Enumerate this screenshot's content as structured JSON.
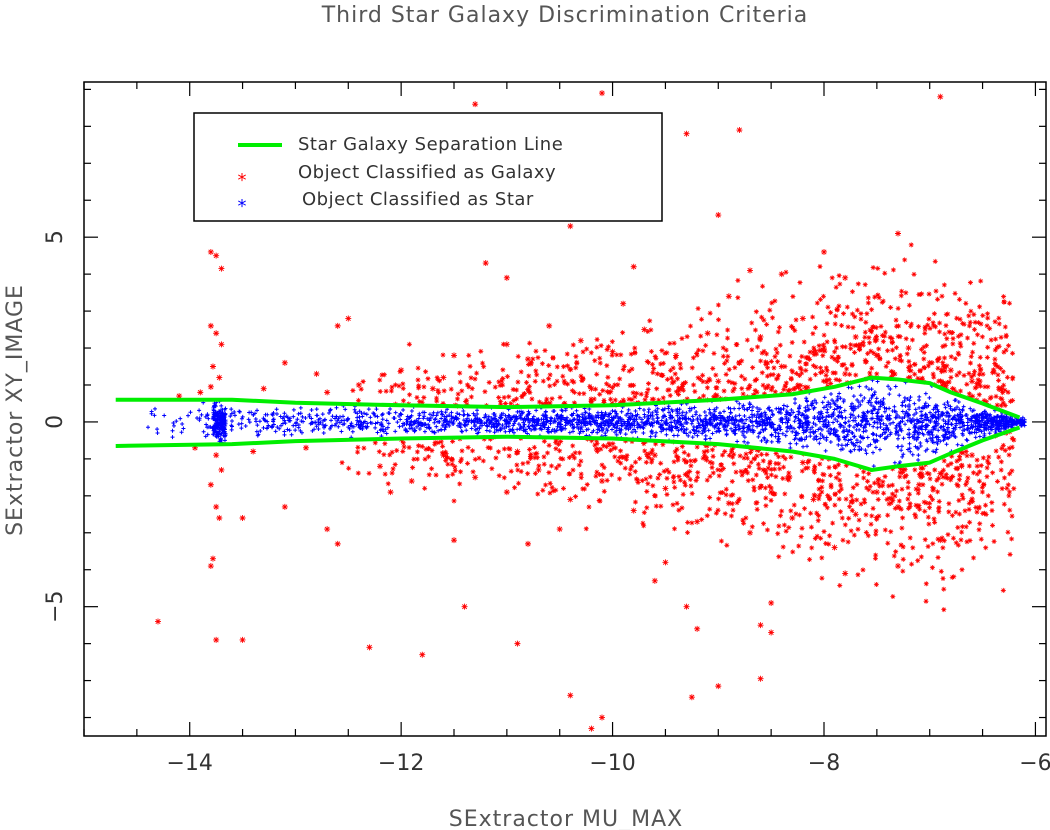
{
  "chart_data": {
    "type": "scatter",
    "title": "Third Star Galaxy Discrimination Criteria",
    "xlabel": "SExtractor MU_MAX",
    "ylabel": "SExtractor XY_IMAGE",
    "xlim": [
      -15,
      -5.9
    ],
    "ylim": [
      -8.5,
      9.2
    ],
    "x_ticks": [
      -14,
      -12,
      -10,
      -8,
      -6
    ],
    "x_tick_labels": [
      "−14",
      "−12",
      "−10",
      "−8",
      "−6"
    ],
    "y_ticks": [
      -5,
      0,
      5
    ],
    "y_tick_labels": [
      "−5",
      "0",
      "5"
    ],
    "grid": false,
    "legend_position": "top-left",
    "colors": {
      "line": "#00ee00",
      "galaxy": "#ff0000",
      "star": "#0000ff",
      "axis": "#000000"
    },
    "series": [
      {
        "name": "Star Galaxy Separation Line",
        "kind": "line",
        "upper": {
          "x": [
            -14.7,
            -13.6,
            -13.0,
            -12.0,
            -11.0,
            -10.0,
            -9.0,
            -8.3,
            -7.9,
            -7.55,
            -7.3,
            -7.0,
            -6.8,
            -6.5,
            -6.15
          ],
          "y": [
            0.6,
            0.6,
            0.52,
            0.45,
            0.4,
            0.45,
            0.6,
            0.75,
            0.95,
            1.2,
            1.15,
            1.05,
            0.8,
            0.5,
            0.12
          ]
        },
        "lower": {
          "x": [
            -14.7,
            -13.6,
            -13.0,
            -12.0,
            -11.0,
            -10.0,
            -9.0,
            -8.3,
            -7.9,
            -7.55,
            -7.3,
            -7.0,
            -6.8,
            -6.5,
            -6.15
          ],
          "y": [
            -0.65,
            -0.6,
            -0.52,
            -0.45,
            -0.4,
            -0.45,
            -0.6,
            -0.8,
            -1.0,
            -1.3,
            -1.2,
            -1.1,
            -0.85,
            -0.5,
            -0.15
          ]
        }
      },
      {
        "name": "Object Classified as Galaxy",
        "kind": "scatter",
        "marker": "*",
        "points": [
          [
            -13.8,
            4.6
          ],
          [
            -13.75,
            4.5
          ],
          [
            -13.7,
            4.15
          ],
          [
            -13.8,
            2.6
          ],
          [
            -13.75,
            2.4
          ],
          [
            -13.7,
            2.1
          ],
          [
            -13.78,
            1.5
          ],
          [
            -13.72,
            1.2
          ],
          [
            -13.8,
            0.95
          ],
          [
            -13.75,
            -0.9
          ],
          [
            -13.7,
            -1.3
          ],
          [
            -13.8,
            -1.7
          ],
          [
            -13.75,
            -2.3
          ],
          [
            -13.72,
            -2.6
          ],
          [
            -13.78,
            -3.7
          ],
          [
            -13.8,
            -3.9
          ],
          [
            -13.75,
            -5.9
          ],
          [
            -13.5,
            -5.9
          ],
          [
            -14.3,
            -5.4
          ],
          [
            -13.5,
            -2.6
          ],
          [
            -13.1,
            -2.3
          ],
          [
            -12.7,
            -2.9
          ],
          [
            -12.6,
            -3.3
          ],
          [
            -12.3,
            -6.1
          ],
          [
            -11.8,
            -6.3
          ],
          [
            -11.5,
            -3.2
          ],
          [
            -11.4,
            -5.0
          ],
          [
            -10.9,
            -6.0
          ],
          [
            -10.5,
            -2.9
          ],
          [
            -10.4,
            -7.4
          ],
          [
            -10.1,
            -8.0
          ],
          [
            -10.2,
            -8.3
          ],
          [
            -9.6,
            -4.3
          ],
          [
            -9.3,
            -5.0
          ],
          [
            -9.2,
            -5.6
          ],
          [
            -9.25,
            -7.45
          ],
          [
            -9.0,
            -7.15
          ],
          [
            -8.6,
            -6.95
          ],
          [
            -8.5,
            -4.9
          ],
          [
            -8.6,
            -5.5
          ],
          [
            -8.5,
            -5.7
          ],
          [
            -7.3,
            -3.9
          ],
          [
            -7.8,
            -4.1
          ],
          [
            -6.9,
            -3.2
          ],
          [
            -11.3,
            8.6
          ],
          [
            -10.1,
            8.9
          ],
          [
            -9.3,
            7.8
          ],
          [
            -8.8,
            7.9
          ],
          [
            -6.9,
            8.8
          ],
          [
            -9.0,
            5.6
          ],
          [
            -10.4,
            5.3
          ],
          [
            -7.3,
            5.1
          ],
          [
            -11.2,
            4.3
          ],
          [
            -11.0,
            3.9
          ],
          [
            -9.8,
            4.2
          ],
          [
            -8.7,
            4.1
          ],
          [
            -8.4,
            4.0
          ],
          [
            -8.0,
            4.6
          ],
          [
            -7.8,
            3.9
          ],
          [
            -12.5,
            2.8
          ],
          [
            -12.6,
            2.6
          ],
          [
            -13.1,
            1.6
          ],
          [
            -12.8,
            1.3
          ],
          [
            -12.4,
            1.0
          ],
          [
            -12.0,
            1.4
          ],
          [
            -11.5,
            1.8
          ],
          [
            -11.0,
            2.1
          ],
          [
            -10.8,
            1.7
          ],
          [
            -10.6,
            2.6
          ],
          [
            -10.3,
            2.2
          ],
          [
            -10.0,
            1.9
          ],
          [
            -9.7,
            2.5
          ],
          [
            -9.4,
            1.8
          ],
          [
            -9.1,
            2.4
          ],
          [
            -8.8,
            1.6
          ],
          [
            -8.6,
            2.3
          ],
          [
            -8.4,
            1.5
          ],
          [
            -8.2,
            2.8
          ],
          [
            -8.0,
            2.0
          ],
          [
            -7.7,
            2.3
          ],
          [
            -7.5,
            1.8
          ],
          [
            -7.2,
            2.0
          ],
          [
            -7.0,
            1.6
          ],
          [
            -6.8,
            1.4
          ],
          [
            -12.2,
            -1.2
          ],
          [
            -11.9,
            -1.6
          ],
          [
            -11.6,
            -0.9
          ],
          [
            -11.3,
            -1.5
          ],
          [
            -11.0,
            -1.9
          ],
          [
            -10.7,
            -1.3
          ],
          [
            -10.4,
            -2.1
          ],
          [
            -10.1,
            -1.6
          ],
          [
            -9.8,
            -2.4
          ],
          [
            -9.5,
            -1.8
          ],
          [
            -9.2,
            -2.7
          ],
          [
            -8.9,
            -2.2
          ],
          [
            -8.7,
            -3.0
          ],
          [
            -8.5,
            -1.9
          ],
          [
            -8.3,
            -2.6
          ],
          [
            -8.1,
            -2.1
          ],
          [
            -7.9,
            -3.4
          ],
          [
            -7.7,
            -2.5
          ],
          [
            -7.5,
            -1.9
          ],
          [
            -7.3,
            -2.3
          ],
          [
            -7.1,
            -1.7
          ],
          [
            -6.9,
            -1.4
          ],
          [
            -6.7,
            -1.2
          ],
          [
            -6.6,
            1.1
          ],
          [
            -6.6,
            -0.9
          ],
          [
            -13.3,
            0.9
          ],
          [
            -13.4,
            -0.8
          ],
          [
            -12.9,
            -0.7
          ],
          [
            -12.7,
            0.8
          ],
          [
            -11.7,
            0.9
          ],
          [
            -10.9,
            -0.8
          ],
          [
            -10.2,
            0.9
          ],
          [
            -9.6,
            -0.9
          ],
          [
            -9.0,
            1.1
          ],
          [
            -8.2,
            -1.1
          ],
          [
            -7.8,
            1.3
          ],
          [
            -9.9,
            3.2
          ],
          [
            -8.9,
            3.4
          ],
          [
            -9.5,
            -3.8
          ],
          [
            -10.8,
            -3.3
          ],
          [
            -11.6,
            1.2
          ],
          [
            -12.1,
            -1.9
          ],
          [
            -13.9,
            0.8
          ],
          [
            -14.1,
            0.7
          ],
          [
            -13.95,
            -0.7
          ]
        ]
      },
      {
        "name": "Object Classified as Star",
        "kind": "scatter",
        "marker": "*",
        "band": {
          "x_range": [
            -14.5,
            -6.1
          ],
          "note": "dense population concentrated within the separation lines around y = 0"
        }
      }
    ]
  }
}
